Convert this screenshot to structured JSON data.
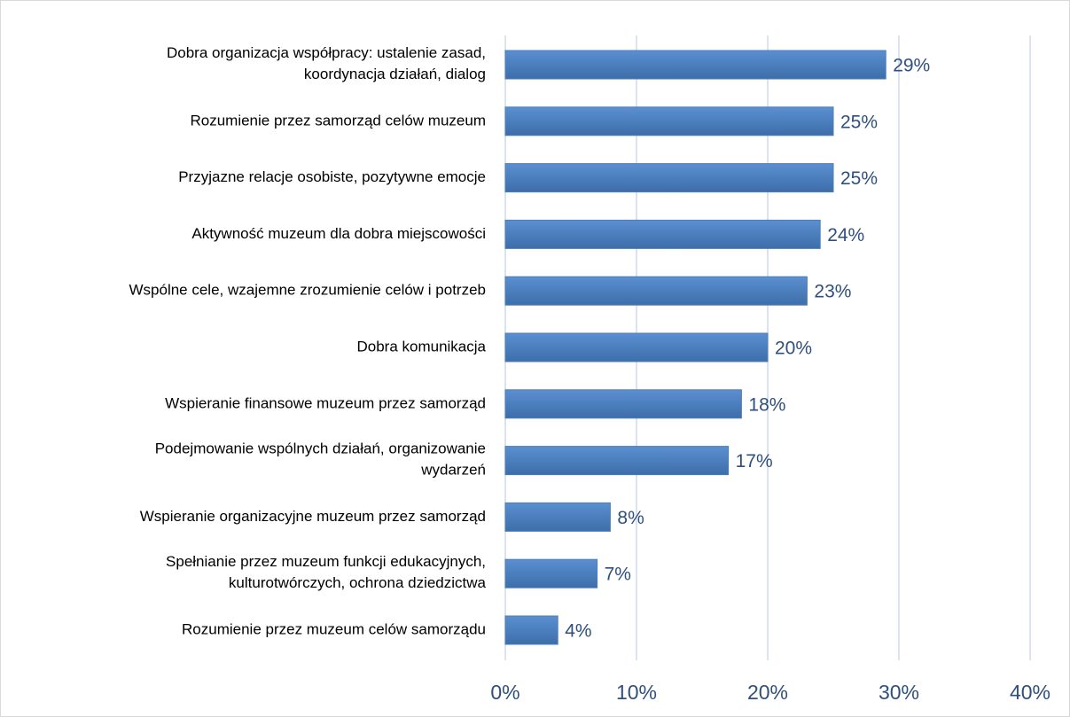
{
  "chart_data": {
    "type": "bar",
    "orientation": "horizontal",
    "categories": [
      "Dobra organizacja współpracy: ustalenie zasad,\nkoordynacja działań, dialog",
      "Rozumienie przez samorząd celów muzeum",
      "Przyjazne relacje osobiste, pozytywne emocje",
      "Aktywność muzeum dla dobra miejscowości",
      "Wspólne cele, wzajemne zrozumienie celów i potrzeb",
      "Dobra komunikacja",
      "Wspieranie finansowe muzeum przez samorząd",
      "Podejmowanie wspólnych działań, organizowanie\nwydarzeń",
      "Wspieranie organizacyjne muzeum przez samorząd",
      "Spełnianie przez muzeum funkcji edukacyjnych,\nkulturotwórczych, ochrona dziedzictwa",
      "Rozumienie przez muzeum celów samorządu"
    ],
    "values": [
      29,
      25,
      25,
      24,
      23,
      20,
      18,
      17,
      8,
      7,
      4
    ],
    "value_labels": [
      "29%",
      "25%",
      "25%",
      "24%",
      "23%",
      "20%",
      "18%",
      "17%",
      "8%",
      "7%",
      "4%"
    ],
    "color": "#4a7ebb",
    "xlim": [
      0,
      40
    ],
    "xticks": [
      {
        "value": 0,
        "label": "0%"
      },
      {
        "value": 10,
        "label": "10%"
      },
      {
        "value": 20,
        "label": "20%"
      },
      {
        "value": 30,
        "label": "30%"
      },
      {
        "value": 40,
        "label": "40%"
      }
    ],
    "grid": true
  }
}
